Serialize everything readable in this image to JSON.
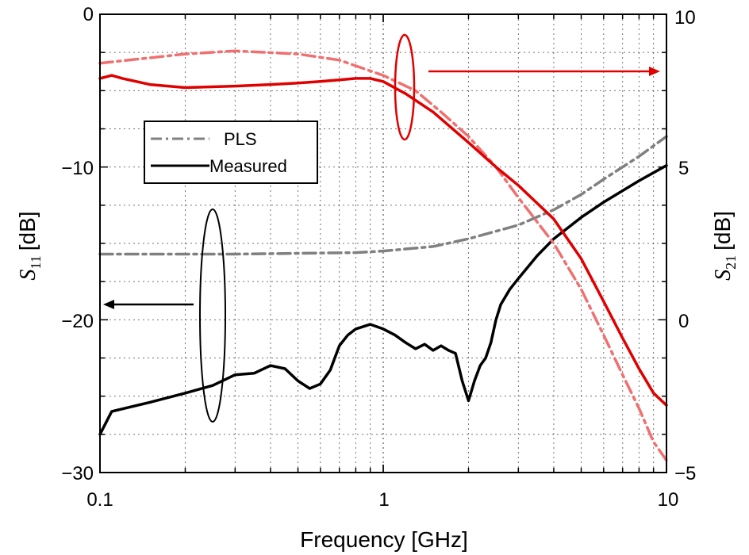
{
  "chart_data": {
    "type": "line",
    "x_axis": {
      "label": "Frequency [GHz]",
      "scale": "log",
      "range": [
        0.1,
        10
      ],
      "ticks": [
        "0.1",
        "1",
        "10"
      ],
      "grid": true
    },
    "y_left": {
      "label_main": "S",
      "label_sub": "11",
      "label_unit": "[dB]",
      "range": [
        -30,
        0
      ],
      "ticks": [
        "0",
        "−10",
        "−20",
        "−30"
      ]
    },
    "y_right": {
      "label_main": "S",
      "label_sub": "21",
      "label_unit": "[dB]",
      "range": [
        -5,
        10
      ],
      "ticks": [
        "10",
        "5",
        "0",
        "−5"
      ]
    },
    "legend": {
      "placement": "upper-left",
      "entries": [
        {
          "name": "PLS",
          "style": "dash-dot"
        },
        {
          "name": "Measured",
          "style": "solid"
        }
      ]
    },
    "colors": {
      "s11_pls": "#808080",
      "s11_measured": "#000000",
      "s21_pls": "#f07070",
      "s21_measured": "#e00000",
      "legend_pls": "#808080",
      "legend_measured": "#000000"
    },
    "series": [
      {
        "key": "s11_pls",
        "axis": "left",
        "style": "dash-dot",
        "x": [
          0.1,
          0.2,
          0.3,
          0.5,
          0.8,
          1.0,
          1.5,
          2.0,
          3.0,
          4.0,
          5.0,
          6.0,
          8.0,
          10.0
        ],
        "y": [
          -15.7,
          -15.7,
          -15.7,
          -15.65,
          -15.6,
          -15.5,
          -15.2,
          -14.7,
          -13.8,
          -12.8,
          -11.8,
          -10.8,
          -9.3,
          -8.0
        ]
      },
      {
        "key": "s11_measured",
        "axis": "left",
        "style": "solid",
        "x": [
          0.1,
          0.11,
          0.15,
          0.2,
          0.25,
          0.3,
          0.35,
          0.4,
          0.45,
          0.5,
          0.55,
          0.6,
          0.65,
          0.7,
          0.75,
          0.8,
          0.9,
          1.0,
          1.1,
          1.2,
          1.3,
          1.4,
          1.5,
          1.6,
          1.7,
          1.8,
          1.9,
          2.0,
          2.1,
          2.2,
          2.3,
          2.4,
          2.5,
          2.6,
          2.8,
          3.0,
          3.5,
          4.0,
          5.0,
          6.0,
          8.0,
          10.0
        ],
        "y": [
          -27.5,
          -26.0,
          -25.4,
          -24.8,
          -24.3,
          -23.6,
          -23.5,
          -23.0,
          -23.2,
          -24.0,
          -24.5,
          -24.2,
          -23.3,
          -21.7,
          -21.0,
          -20.6,
          -20.3,
          -20.6,
          -21.0,
          -21.5,
          -21.9,
          -21.6,
          -22.0,
          -21.7,
          -22.0,
          -22.2,
          -24.0,
          -25.3,
          -24.0,
          -23.0,
          -22.5,
          -21.5,
          -20.0,
          -19.0,
          -18.0,
          -17.3,
          -15.8,
          -14.7,
          -13.3,
          -12.3,
          -10.9,
          -9.9
        ]
      },
      {
        "key": "s21_pls",
        "axis": "right",
        "style": "dash-dot",
        "x": [
          0.1,
          0.2,
          0.3,
          0.5,
          0.7,
          1.0,
          1.3,
          1.6,
          2.0,
          2.5,
          3.0,
          4.0,
          5.0,
          6.0,
          7.0,
          8.0,
          9.0,
          10.0
        ],
        "y": [
          8.4,
          8.7,
          8.8,
          8.7,
          8.5,
          8.0,
          7.5,
          6.8,
          6.0,
          5.0,
          4.0,
          2.5,
          1.0,
          -0.5,
          -1.8,
          -2.9,
          -4.0,
          -4.6
        ]
      },
      {
        "key": "s21_measured",
        "axis": "right",
        "style": "solid",
        "x": [
          0.1,
          0.11,
          0.12,
          0.15,
          0.2,
          0.3,
          0.4,
          0.5,
          0.6,
          0.7,
          0.8,
          0.9,
          1.0,
          1.2,
          1.5,
          2.0,
          2.5,
          3.0,
          4.0,
          5.0,
          6.0,
          7.0,
          8.0,
          9.0,
          10.0
        ],
        "y": [
          7.9,
          8.0,
          7.9,
          7.7,
          7.6,
          7.65,
          7.7,
          7.75,
          7.8,
          7.85,
          7.9,
          7.9,
          7.8,
          7.4,
          6.8,
          5.8,
          5.0,
          4.4,
          3.3,
          2.0,
          0.6,
          -0.6,
          -1.6,
          -2.4,
          -2.8
        ]
      }
    ]
  }
}
